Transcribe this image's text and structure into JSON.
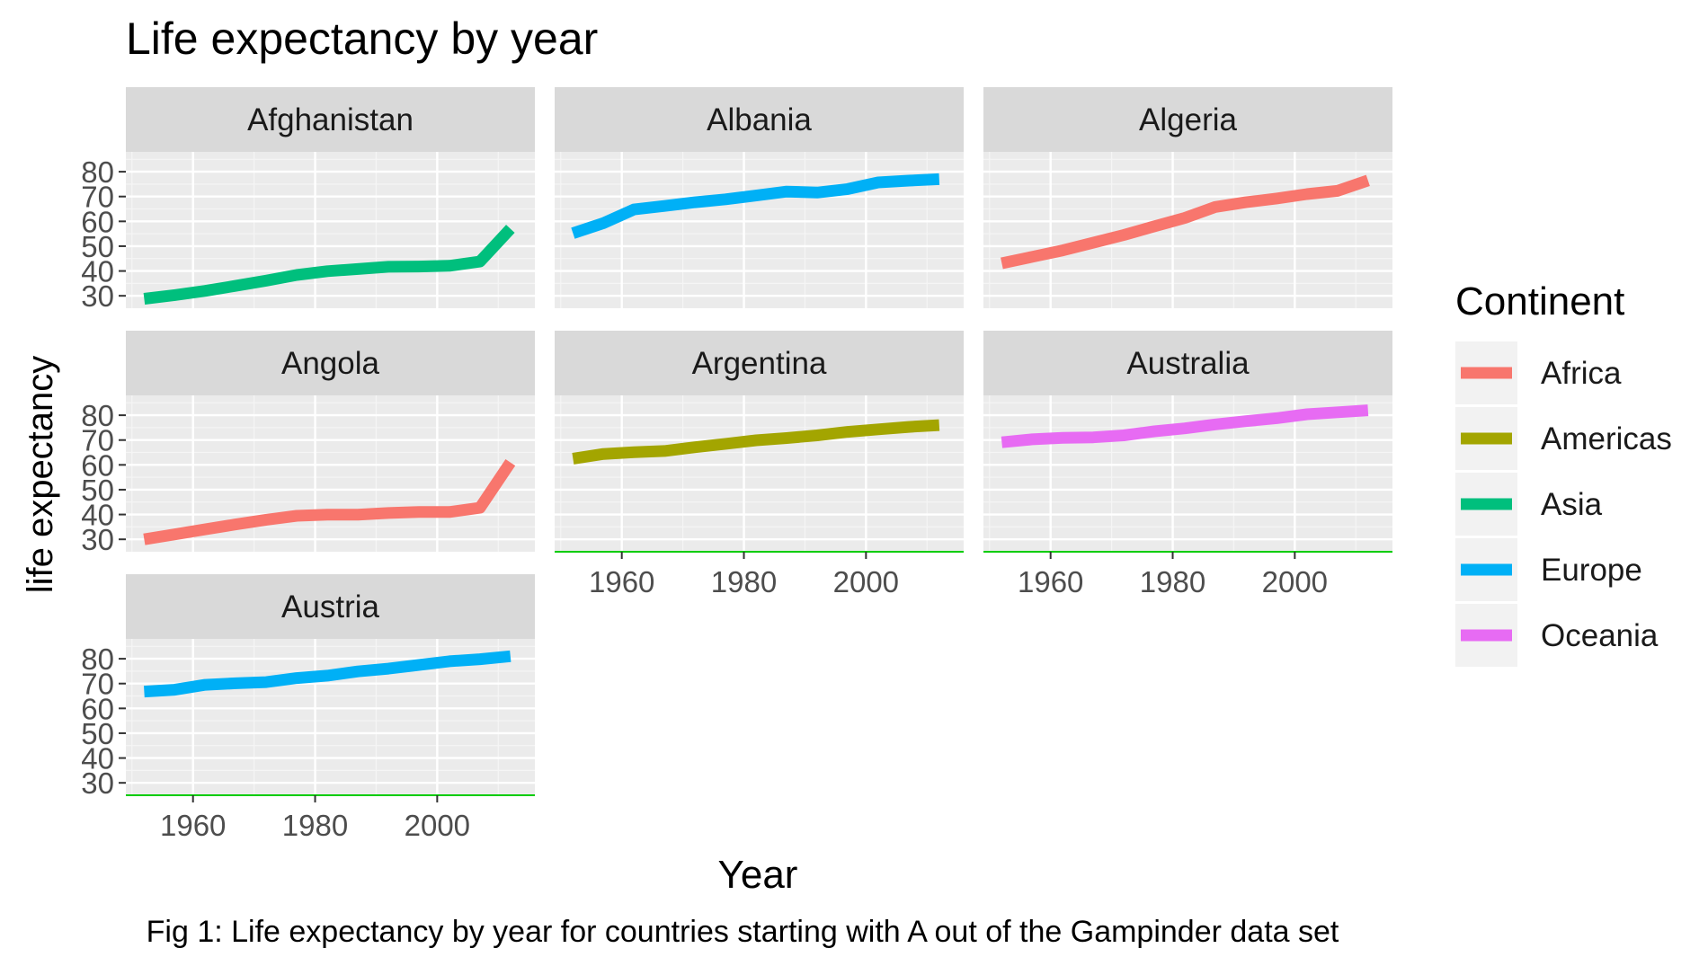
{
  "chart_data": {
    "type": "line",
    "title": "Life expectancy by year",
    "xlabel": "Year",
    "ylabel": "life expectancy",
    "caption": "Fig 1: Life expectancy by year for countries starting with A out of the Gampinder data set",
    "xlim": [
      1949,
      2016
    ],
    "ylim": [
      25,
      88
    ],
    "x_ticks": [
      1960,
      1980,
      2000
    ],
    "y_ticks": [
      30,
      40,
      50,
      60,
      70,
      80
    ],
    "grid": true,
    "legend": {
      "title": "Continent",
      "position": "right",
      "items": [
        {
          "name": "Africa",
          "color": "#F8766D"
        },
        {
          "name": "Americas",
          "color": "#A3A500"
        },
        {
          "name": "Asia",
          "color": "#00BF7D"
        },
        {
          "name": "Europe",
          "color": "#00B0F6"
        },
        {
          "name": "Oceania",
          "color": "#E76BF3"
        }
      ]
    },
    "x": [
      1952,
      1957,
      1962,
      1967,
      1972,
      1977,
      1982,
      1987,
      1992,
      1997,
      2002,
      2007,
      2012
    ],
    "series": [
      {
        "name": "Afghanistan",
        "continent": "Asia",
        "color": "#00BF7D",
        "values": [
          28.8,
          30.3,
          32.0,
          34.0,
          36.1,
          38.4,
          39.9,
          40.8,
          41.7,
          41.8,
          42.1,
          43.8,
          57.0
        ]
      },
      {
        "name": "Albania",
        "continent": "Europe",
        "color": "#00B0F6",
        "values": [
          55.2,
          59.3,
          64.8,
          66.2,
          67.7,
          68.9,
          70.4,
          72.0,
          71.6,
          73.0,
          75.7,
          76.4,
          77.0
        ]
      },
      {
        "name": "Algeria",
        "continent": "Africa",
        "color": "#F8766D",
        "values": [
          43.1,
          45.7,
          48.3,
          51.4,
          54.5,
          58.0,
          61.4,
          65.8,
          67.7,
          69.2,
          71.0,
          72.3,
          76.5
        ]
      },
      {
        "name": "Angola",
        "continent": "Africa",
        "color": "#F8766D",
        "values": [
          30.0,
          32.0,
          34.0,
          36.0,
          37.9,
          39.5,
          39.9,
          39.9,
          40.6,
          41.0,
          41.0,
          42.7,
          61.0
        ]
      },
      {
        "name": "Argentina",
        "continent": "Americas",
        "color": "#A3A500",
        "values": [
          62.5,
          64.4,
          65.1,
          65.6,
          67.1,
          68.5,
          69.9,
          70.8,
          71.9,
          73.3,
          74.3,
          75.3,
          76.0
        ]
      },
      {
        "name": "Australia",
        "continent": "Oceania",
        "color": "#E76BF3",
        "values": [
          69.1,
          70.3,
          70.9,
          71.1,
          71.9,
          73.5,
          74.7,
          76.3,
          77.6,
          78.8,
          80.4,
          81.2,
          82.0
        ]
      },
      {
        "name": "Austria",
        "continent": "Europe",
        "color": "#00B0F6",
        "values": [
          66.8,
          67.5,
          69.5,
          70.1,
          70.6,
          72.2,
          73.2,
          74.9,
          76.0,
          77.5,
          79.0,
          79.8,
          81.0
        ]
      }
    ]
  }
}
